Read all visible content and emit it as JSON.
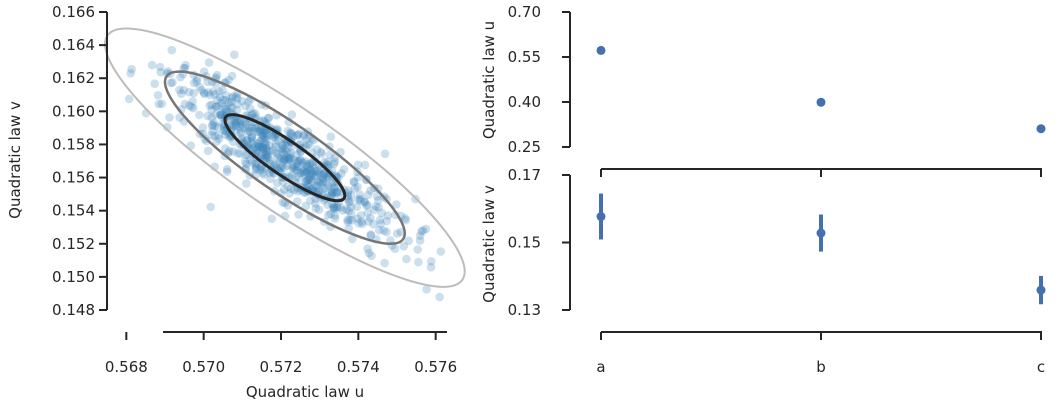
{
  "colors": {
    "scatter": "#3b84b8",
    "series": "#4470ad",
    "spine": "#262626",
    "ellipse_1sigma": "#262626",
    "ellipse_2sigma": "#767676",
    "ellipse_3sigma": "#bcbcbc"
  },
  "chart_data": [
    {
      "type": "scatter",
      "xlabel": "Quadratic law u",
      "ylabel": "Quadratic law v",
      "xlim": [
        0.5675,
        0.5765
      ],
      "ylim": [
        0.148,
        0.166
      ],
      "x_ticks": [
        "0.568",
        "0.570",
        "0.572",
        "0.574",
        "0.576"
      ],
      "y_ticks": [
        "0.148",
        "0.150",
        "0.152",
        "0.154",
        "0.156",
        "0.158",
        "0.160",
        "0.162",
        "0.164",
        "0.166"
      ],
      "grid": false,
      "distribution": {
        "n_points": 700,
        "mean_u": 0.5721,
        "mean_v": 0.1572,
        "sd_u": 0.00155,
        "sd_v": 0.0026,
        "correlation": -0.88
      },
      "confidence_ellipses_sigma": [
        1,
        2,
        3
      ]
    },
    {
      "type": "scatter",
      "xlabel": "",
      "ylabel": "Quadratic law u",
      "categories": [
        "a",
        "b",
        "c"
      ],
      "ylim": [
        0.25,
        0.7
      ],
      "y_ticks": [
        "0.70",
        "0.55",
        "0.40",
        "0.25"
      ],
      "values": [
        0.572,
        0.399,
        0.311
      ],
      "errors": [
        0.002,
        0.002,
        0.002
      ]
    },
    {
      "type": "scatter",
      "xlabel": "",
      "ylabel": "Quadratic law v",
      "categories": [
        "a",
        "b",
        "c"
      ],
      "ylim": [
        0.13,
        0.17
      ],
      "y_ticks": [
        "0.17",
        "0.15",
        "0.13"
      ],
      "values": [
        0.1577,
        0.1528,
        0.1359
      ],
      "errors": [
        0.0068,
        0.0055,
        0.0042
      ]
    }
  ]
}
